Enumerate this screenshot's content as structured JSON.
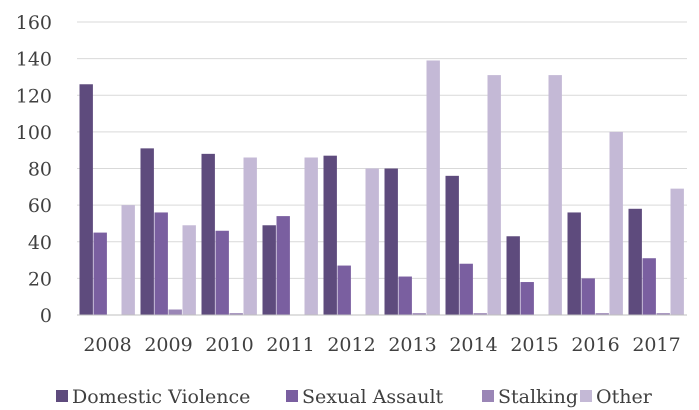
{
  "chart_data": {
    "type": "bar",
    "title": "",
    "xlabel": "",
    "ylabel": "",
    "categories": [
      "2008",
      "2009",
      "2010",
      "2011",
      "2012",
      "2013",
      "2014",
      "2015",
      "2016",
      "2017"
    ],
    "ylim": [
      0,
      160
    ],
    "yticks": [
      0,
      20,
      40,
      60,
      80,
      100,
      120,
      140,
      160
    ],
    "grid": true,
    "legend_position": "bottom",
    "series": [
      {
        "name": "Domestic Violence",
        "color": "#5e4b7d",
        "values": [
          126,
          91,
          88,
          49,
          87,
          80,
          76,
          43,
          56,
          58
        ]
      },
      {
        "name": "Sexual Assault",
        "color": "#7a5fa0",
        "values": [
          45,
          56,
          46,
          54,
          27,
          21,
          28,
          18,
          20,
          31
        ]
      },
      {
        "name": "Stalking",
        "color": "#9a86b6",
        "values": [
          0,
          3,
          1,
          0,
          0,
          1,
          1,
          0,
          1,
          1
        ]
      },
      {
        "name": "Other",
        "color": "#c4b9d6",
        "values": [
          60,
          49,
          86,
          86,
          80,
          139,
          131,
          131,
          100,
          69
        ]
      }
    ]
  }
}
